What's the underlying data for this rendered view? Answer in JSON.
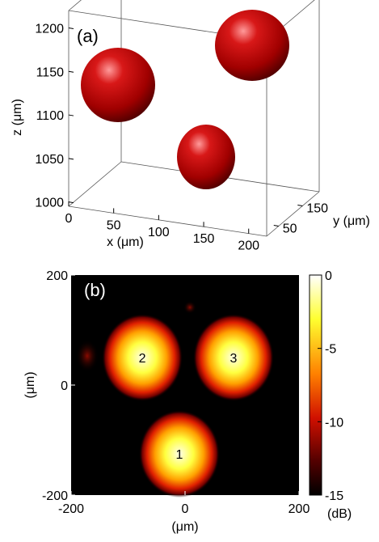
{
  "chart_data": [
    {
      "type": "isosurface3d",
      "panel_label": "(a)",
      "xlabel": "x (μm)",
      "ylabel": "y (μm)",
      "zlabel": "z (μm)",
      "xlim": [
        0,
        220
      ],
      "ylim": [
        0,
        220
      ],
      "zlim": [
        995,
        1220
      ],
      "xticks": [
        0,
        50,
        100,
        150,
        200
      ],
      "yticks": [
        50,
        150
      ],
      "zticks": [
        1000,
        1050,
        1100,
        1150,
        1200
      ],
      "color": "#b00000"
    },
    {
      "type": "heatmap",
      "panel_label": "(b)",
      "xlabel": "(μm)",
      "ylabel": "(μm)",
      "xlim": [
        -200,
        200
      ],
      "ylim": [
        -200,
        200
      ],
      "xticks": [
        -200,
        0,
        200
      ],
      "yticks": [
        -200,
        0,
        200
      ],
      "spots": [
        {
          "label": "1",
          "x": -10,
          "y": -125
        },
        {
          "label": "2",
          "x": -75,
          "y": 50
        },
        {
          "label": "3",
          "x": 85,
          "y": 50
        }
      ],
      "colorbar": {
        "label": "(dB)",
        "lim": [
          -15,
          0
        ],
        "ticks": [
          0,
          -5,
          -10,
          -15
        ]
      }
    }
  ]
}
